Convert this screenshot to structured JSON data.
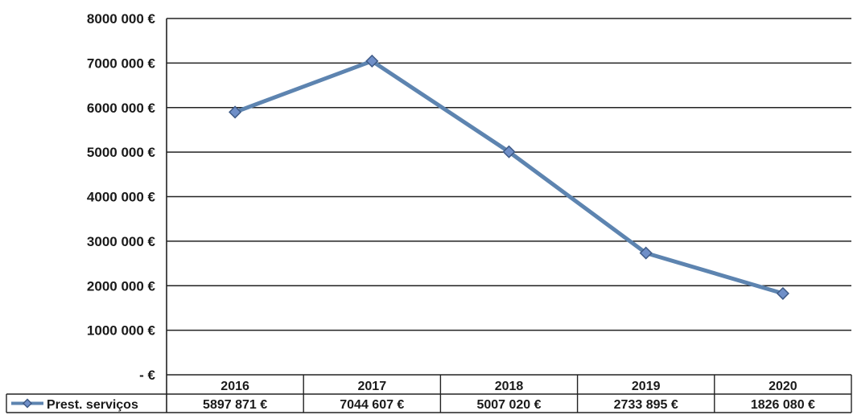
{
  "chart_data": {
    "type": "line",
    "title": "",
    "xlabel": "",
    "ylabel": "",
    "categories": [
      "2016",
      "2017",
      "2018",
      "2019",
      "2020"
    ],
    "ylim": [
      0,
      8000000
    ],
    "y_ticks": [
      {
        "value": 8000000,
        "label": "8000 000 €"
      },
      {
        "value": 7000000,
        "label": "7000 000 €"
      },
      {
        "value": 6000000,
        "label": "6000 000 €"
      },
      {
        "value": 5000000,
        "label": "5000 000 €"
      },
      {
        "value": 4000000,
        "label": "4000 000 €"
      },
      {
        "value": 3000000,
        "label": "3000 000 €"
      },
      {
        "value": 2000000,
        "label": "2000 000 €"
      },
      {
        "value": 1000000,
        "label": "1000 000 €"
      },
      {
        "value": 0,
        "label": "-   €"
      }
    ],
    "grid": true,
    "legend_placement": "data-table",
    "series": [
      {
        "name": "Prest. serviços",
        "values": [
          5897871,
          7044607,
          5007020,
          2733895,
          1826080
        ],
        "value_labels": [
          "5897 871 €",
          "7044 607 €",
          "5007 020 €",
          "2733 895 €",
          "1826 080 €"
        ],
        "color": "#5d84b0",
        "marker": "diamond"
      }
    ]
  }
}
